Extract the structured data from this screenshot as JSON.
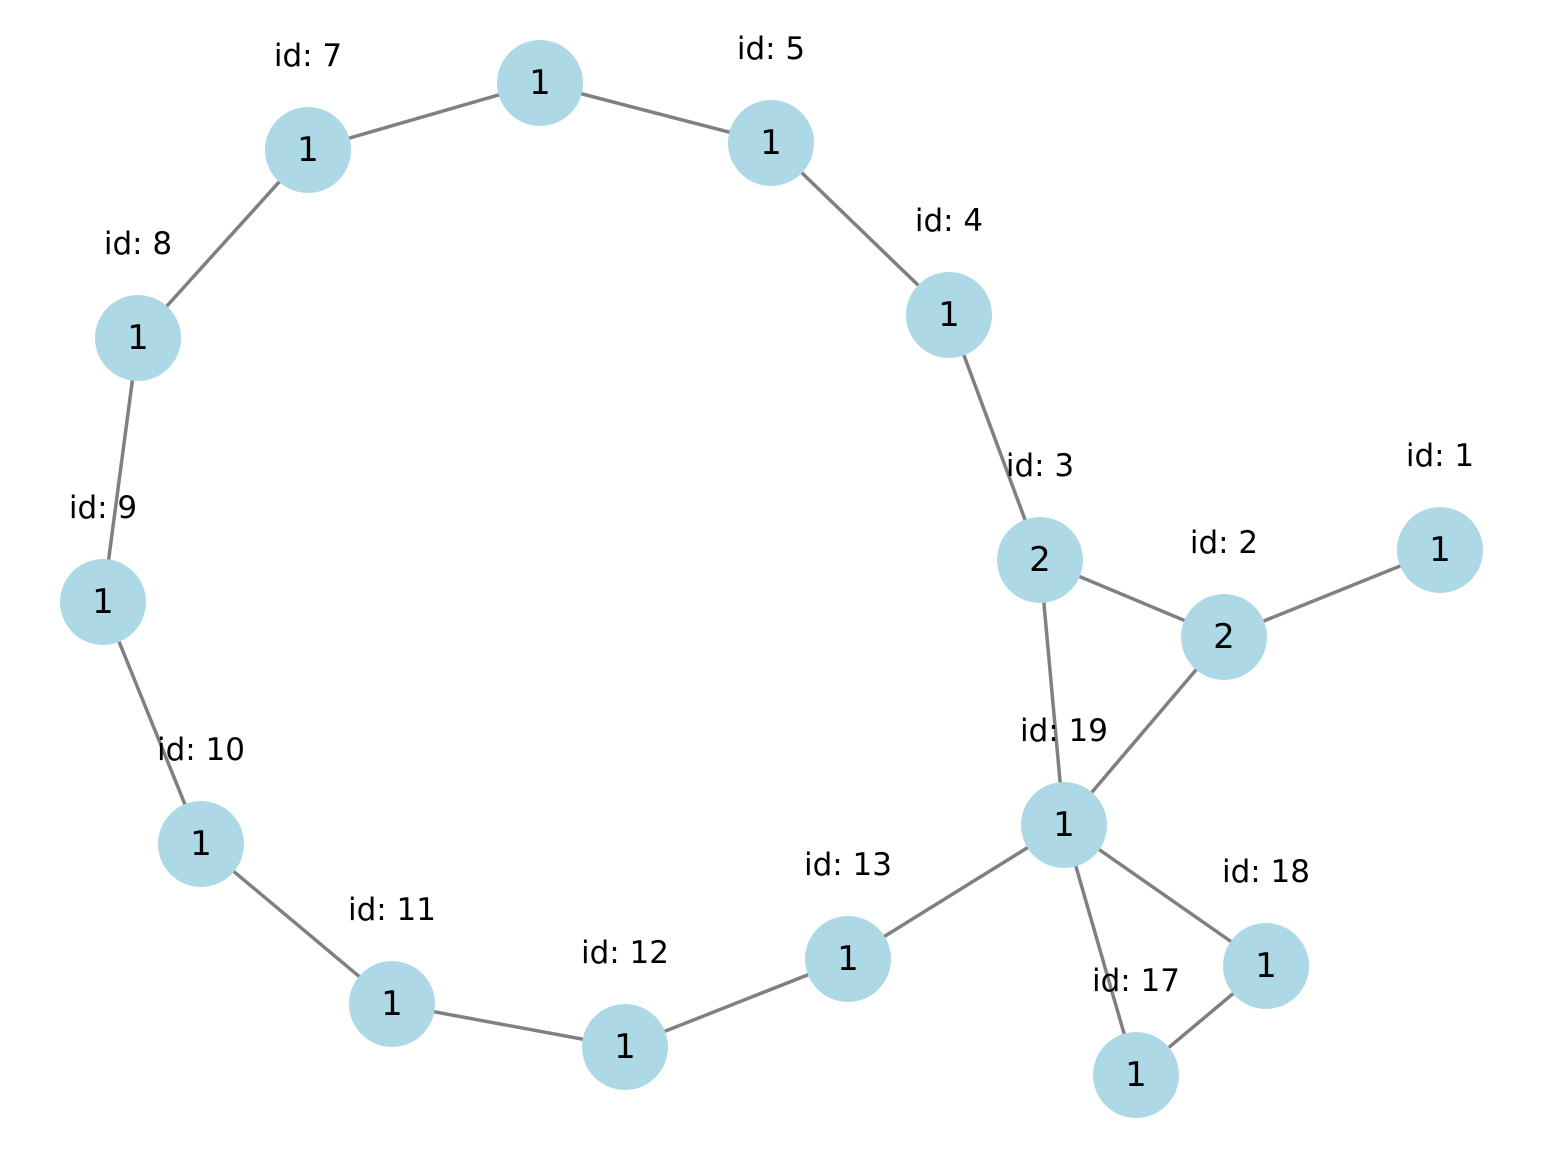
{
  "colors": {
    "node_fill": "#add8e6",
    "edge": "#808080",
    "text": "#000000"
  },
  "nodes": [
    {
      "key": "n1",
      "id_label": "id: 1",
      "value": "1"
    },
    {
      "key": "n2",
      "id_label": "id: 2",
      "value": "2"
    },
    {
      "key": "n3",
      "id_label": "id: 3",
      "value": "2"
    },
    {
      "key": "n4",
      "id_label": "id: 4",
      "value": "1"
    },
    {
      "key": "n5",
      "id_label": "id: 5",
      "value": "1"
    },
    {
      "key": "n6",
      "id_label": "",
      "value": "1"
    },
    {
      "key": "n7",
      "id_label": "id: 7",
      "value": "1"
    },
    {
      "key": "n8",
      "id_label": "id: 8",
      "value": "1"
    },
    {
      "key": "n9",
      "id_label": "id: 9",
      "value": "1"
    },
    {
      "key": "n10",
      "id_label": "id: 10",
      "value": "1"
    },
    {
      "key": "n11",
      "id_label": "id: 11",
      "value": "1"
    },
    {
      "key": "n12",
      "id_label": "id: 12",
      "value": "1"
    },
    {
      "key": "n13",
      "id_label": "id: 13",
      "value": "1"
    },
    {
      "key": "n17",
      "id_label": "id: 17",
      "value": "1"
    },
    {
      "key": "n18",
      "id_label": "id: 18",
      "value": "1"
    },
    {
      "key": "n19",
      "id_label": "id: 19",
      "value": "1"
    }
  ],
  "edges": [
    [
      "n1",
      "n2"
    ],
    [
      "n2",
      "n3"
    ],
    [
      "n2",
      "n19"
    ],
    [
      "n3",
      "n19"
    ],
    [
      "n3",
      "n4"
    ],
    [
      "n4",
      "n5"
    ],
    [
      "n5",
      "n6"
    ],
    [
      "n6",
      "n7"
    ],
    [
      "n7",
      "n8"
    ],
    [
      "n8",
      "n9"
    ],
    [
      "n9",
      "n10"
    ],
    [
      "n10",
      "n11"
    ],
    [
      "n11",
      "n12"
    ],
    [
      "n12",
      "n13"
    ],
    [
      "n13",
      "n19"
    ],
    [
      "n19",
      "n18"
    ],
    [
      "n19",
      "n17"
    ],
    [
      "n17",
      "n18"
    ]
  ]
}
